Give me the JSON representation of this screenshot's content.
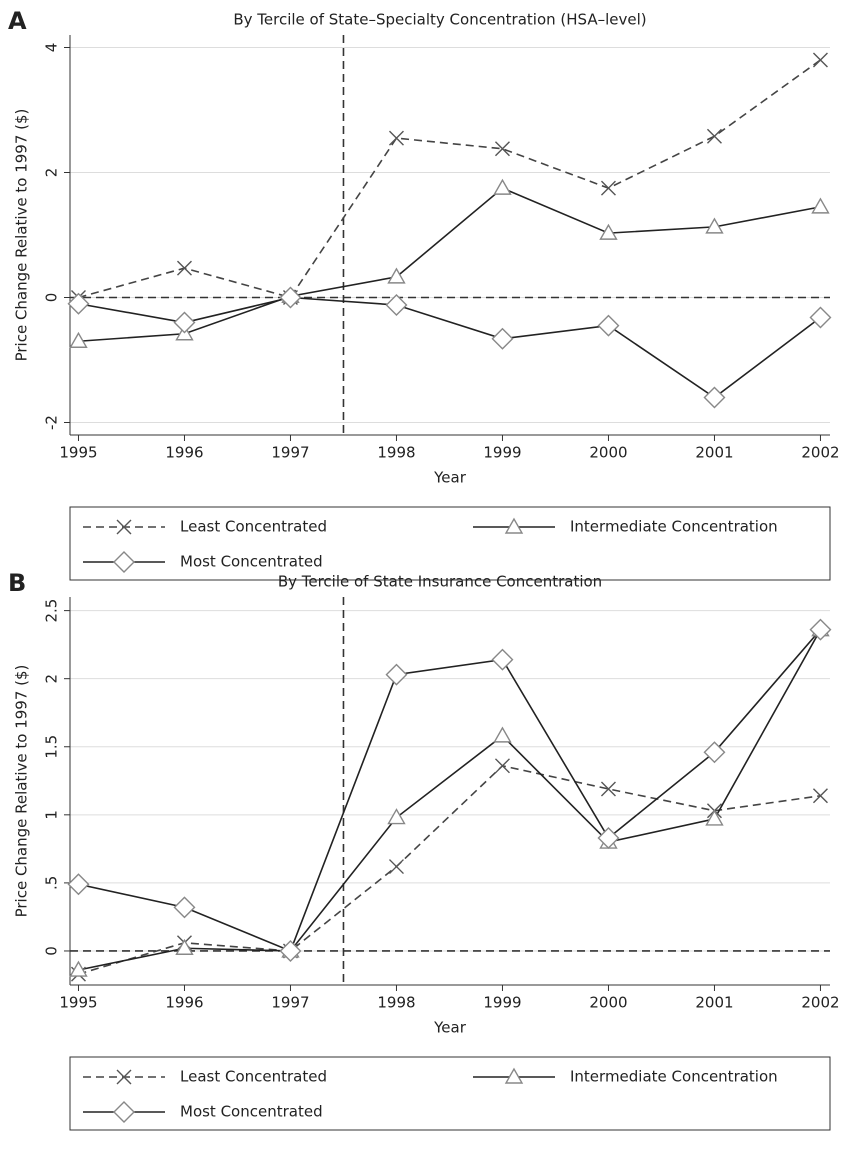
{
  "chart_data": [
    {
      "type": "line",
      "panel": "A",
      "title": "By Tercile of State–Specialty Concentration (HSA–level)",
      "x_label": "Year",
      "y_label": "Price Change Relative to 1997 ($)",
      "x": [
        1995,
        1996,
        1997,
        1998,
        1999,
        2000,
        2001,
        2002
      ],
      "xlim": [
        1994.92,
        2002.09
      ],
      "xticks": [
        1995,
        1996,
        1997,
        1998,
        1999,
        2000,
        2001,
        2002
      ],
      "ylim": [
        -2.2,
        4.2
      ],
      "yticks": [
        -2,
        0,
        2,
        4
      ],
      "grid": true,
      "vline": 1997.5,
      "hline": 0,
      "series": [
        {
          "name": "Least Concentrated",
          "color": "#444",
          "marker": "x",
          "linestyle": "dashed",
          "values": [
            0,
            0.47,
            0,
            2.55,
            2.38,
            1.75,
            2.58,
            3.8
          ]
        },
        {
          "name": "Intermediate Concentration",
          "color": "#222",
          "marker": "triangle",
          "linestyle": "solid",
          "values": [
            -0.7,
            -0.58,
            0.02,
            0.33,
            1.75,
            1.03,
            1.13,
            1.45
          ]
        },
        {
          "name": "Most Concentrated",
          "color": "#222",
          "marker": "diamond",
          "linestyle": "solid",
          "values": [
            -0.1,
            -0.4,
            0,
            -0.12,
            -0.66,
            -0.45,
            -1.6,
            -0.32
          ]
        }
      ]
    },
    {
      "type": "line",
      "panel": "B",
      "title": "By Tercile of State Insurance Concentration",
      "x_label": "Year",
      "y_label": "Price Change Relative to 1997 ($)",
      "x": [
        1995,
        1996,
        1997,
        1998,
        1999,
        2000,
        2001,
        2002
      ],
      "xlim": [
        1994.92,
        2002.09
      ],
      "xticks": [
        1995,
        1996,
        1997,
        1998,
        1999,
        2000,
        2001,
        2002
      ],
      "ylim": [
        -0.25,
        2.6
      ],
      "yticks": [
        0,
        {
          "value": 0.5,
          "label": ".5"
        },
        1,
        1.5,
        2,
        2.5
      ],
      "grid": true,
      "vline": 1997.5,
      "hline": 0,
      "series": [
        {
          "name": "Least Concentrated",
          "color": "#444",
          "marker": "x",
          "linestyle": "dashed",
          "values": [
            -0.17,
            0.06,
            0,
            0.62,
            1.36,
            1.19,
            1.03,
            1.14
          ]
        },
        {
          "name": "Intermediate Concentration",
          "color": "#222",
          "marker": "triangle",
          "linestyle": "solid",
          "values": [
            -0.14,
            0.02,
            0,
            0.98,
            1.58,
            0.8,
            0.97,
            2.36
          ]
        },
        {
          "name": "Most Concentrated",
          "color": "#222",
          "marker": "diamond",
          "linestyle": "solid",
          "values": [
            0.49,
            0.32,
            0,
            2.03,
            2.14,
            0.83,
            1.46,
            2.36
          ]
        }
      ]
    }
  ]
}
